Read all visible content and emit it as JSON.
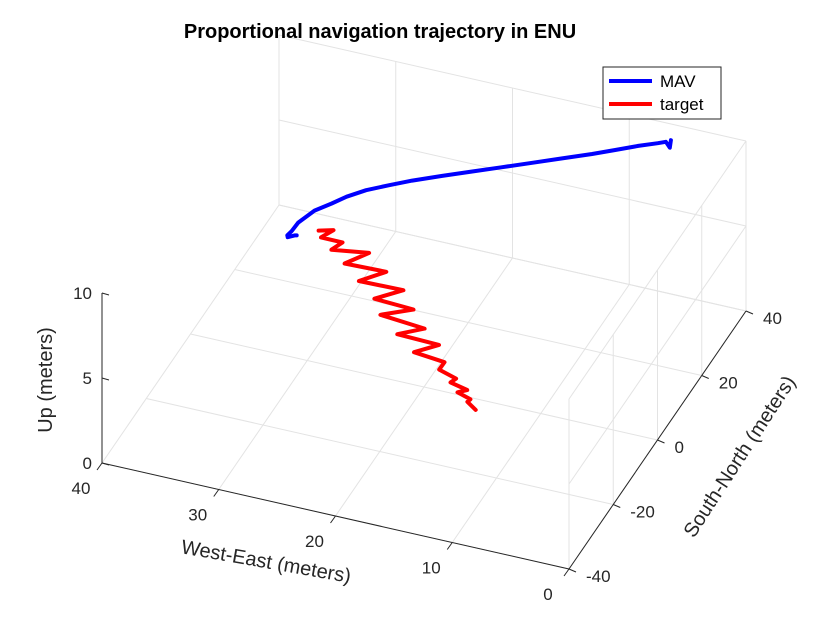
{
  "chart_data": {
    "type": "line",
    "title": "Proportional navigation trajectory in ENU",
    "axes": {
      "x": {
        "label": "West-East (meters)",
        "range": [
          0,
          40
        ],
        "ticks": [
          "0",
          "10",
          "20",
          "30",
          "40"
        ]
      },
      "y": {
        "label": "South-North (meters)",
        "range": [
          -40,
          40
        ],
        "ticks": [
          "-40",
          "-20",
          "0",
          "20",
          "40"
        ]
      },
      "z": {
        "label": "Up (meters)",
        "range": [
          0,
          10
        ],
        "ticks": [
          "0",
          "5",
          "10"
        ]
      }
    },
    "grid": true,
    "legend": {
      "position": "top-right",
      "entries": [
        "MAV",
        "target"
      ]
    },
    "series": [
      {
        "name": "MAV",
        "color": "#0000ff",
        "points": [
          [
            6.0,
            37.7,
            9.55
          ],
          [
            6.0,
            37.2,
            9.2
          ],
          [
            6.2,
            36.5,
            9.65
          ],
          [
            6.7,
            35.5,
            9.68
          ],
          [
            8.0,
            33.5,
            9.7
          ],
          [
            9.5,
            31.0,
            9.7
          ],
          [
            11.0,
            28.5,
            9.7
          ],
          [
            13.0,
            25.5,
            9.7
          ],
          [
            15.0,
            22.5,
            9.7
          ],
          [
            17.0,
            19.5,
            9.7
          ],
          [
            19.0,
            16.5,
            9.7
          ],
          [
            21.0,
            13.5,
            9.7
          ],
          [
            23.0,
            10.5,
            9.68
          ],
          [
            24.5,
            8.0,
            9.65
          ],
          [
            26.0,
            5.5,
            9.6
          ],
          [
            27.2,
            3.0,
            9.5
          ],
          [
            28.0,
            0.5,
            9.45
          ],
          [
            29.0,
            -2.0,
            9.35
          ],
          [
            29.9,
            -4.6,
            9.0
          ],
          [
            30.3,
            -5.5,
            8.6
          ],
          [
            30.5,
            -6.4,
            8.5
          ],
          [
            30.2,
            -7.8,
            8.7
          ],
          [
            29.5,
            -9.5,
            9.2
          ],
          [
            29.0,
            -11.0,
            9.6
          ],
          [
            28.5,
            -12.7,
            10.0
          ]
        ]
      },
      {
        "name": "target",
        "color": "#ff0000",
        "points": [
          [
            15.0,
            -3.0,
            0.0
          ],
          [
            15.6,
            -3.6,
            0.5
          ],
          [
            15.4,
            -3.3,
            0.62
          ],
          [
            16.3,
            -4.4,
            1.1
          ],
          [
            15.6,
            -3.7,
            1.21
          ],
          [
            16.8,
            -4.9,
            1.7
          ],
          [
            16.4,
            -4.5,
            1.91
          ],
          [
            17.6,
            -5.8,
            2.5
          ],
          [
            17.2,
            -5.5,
            2.94
          ],
          [
            19.4,
            -7.7,
            3.6
          ],
          [
            17.6,
            -5.9,
            3.97
          ],
          [
            20.6,
            -8.9,
            4.7
          ],
          [
            18.6,
            -7.1,
            5.0
          ],
          [
            21.8,
            -10.2,
            5.9
          ],
          [
            19.4,
            -7.9,
            6.15
          ],
          [
            22.2,
            -10.8,
            6.9
          ],
          [
            20.1,
            -8.8,
            7.35
          ],
          [
            23.3,
            -12.0,
            8.0
          ],
          [
            21.3,
            -10.2,
            8.51
          ],
          [
            24.3,
            -13.2,
            9.1
          ],
          [
            22.5,
            -11.6,
            9.7
          ],
          [
            25.2,
            -14.4,
            10.0
          ],
          [
            24.4,
            -13.6,
            10.4
          ],
          [
            25.9,
            -15.4,
            10.8
          ],
          [
            25.0,
            -14.5,
            11.2
          ],
          [
            26.0,
            -16.0,
            11.3
          ]
        ]
      }
    ]
  }
}
